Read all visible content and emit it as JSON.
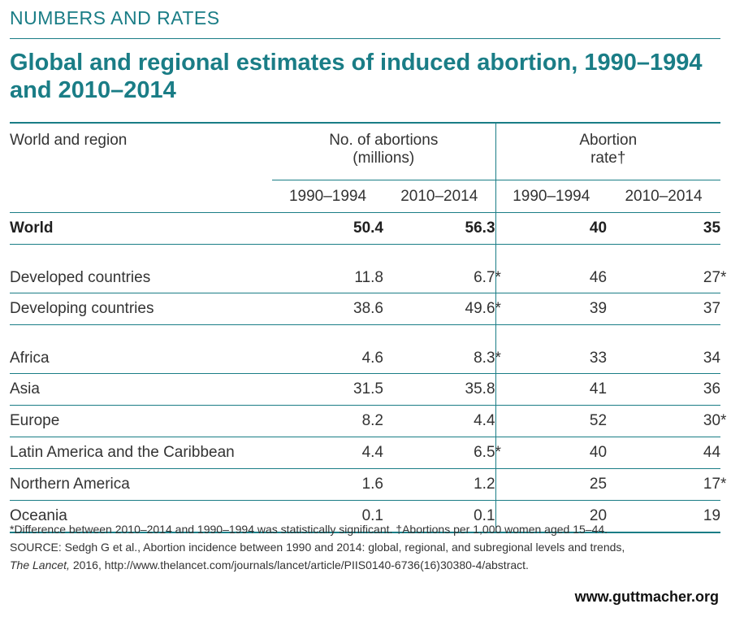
{
  "kicker": "NUMBERS AND RATES",
  "title": "Global and regional estimates of induced abortion, 1990–1994 and 2010–2014",
  "chart_data": {
    "type": "table",
    "columns": {
      "region_header": "World and region",
      "group1": "No. of abortions (millions)",
      "group1_line1": "No. of abortions",
      "group1_line2": "(millions)",
      "group2": "Abortion rate†",
      "group2_line1": "Abortion",
      "group2_line2": "rate†",
      "periods": [
        "1990–1994",
        "2010–2014",
        "1990–1994",
        "2010–2014"
      ]
    },
    "rows": [
      {
        "region": "World",
        "abortions_1990_1994": "50.4",
        "abortions_2010_2014": "56.3",
        "rate_1990_1994": "40",
        "rate_2010_2014": "35"
      },
      {
        "region": "Developed countries",
        "abortions_1990_1994": "11.8",
        "abortions_2010_2014": "6.7*",
        "rate_1990_1994": "46",
        "rate_2010_2014": "27*"
      },
      {
        "region": "Developing countries",
        "abortions_1990_1994": "38.6",
        "abortions_2010_2014": "49.6*",
        "rate_1990_1994": "39",
        "rate_2010_2014": "37"
      },
      {
        "region": "Africa",
        "abortions_1990_1994": "4.6",
        "abortions_2010_2014": "8.3*",
        "rate_1990_1994": "33",
        "rate_2010_2014": "34"
      },
      {
        "region": "Asia",
        "abortions_1990_1994": "31.5",
        "abortions_2010_2014": "35.8",
        "rate_1990_1994": "41",
        "rate_2010_2014": "36"
      },
      {
        "region": "Europe",
        "abortions_1990_1994": "8.2",
        "abortions_2010_2014": "4.4",
        "rate_1990_1994": "52",
        "rate_2010_2014": "30*"
      },
      {
        "region": "Latin America and the Caribbean",
        "abortions_1990_1994": "4.4",
        "abortions_2010_2014": "6.5*",
        "rate_1990_1994": "40",
        "rate_2010_2014": "44"
      },
      {
        "region": "Northern America",
        "abortions_1990_1994": "1.6",
        "abortions_2010_2014": "1.2",
        "rate_1990_1994": "25",
        "rate_2010_2014": "17*"
      },
      {
        "region": "Oceania",
        "abortions_1990_1994": "0.1",
        "abortions_2010_2014": "0.1",
        "rate_1990_1994": "20",
        "rate_2010_2014": "19"
      }
    ]
  },
  "notes": {
    "footnote": "*Difference between 2010–2014 and 1990–1994 was statistically significant. †Abortions per 1,000 women aged 15–44.",
    "source_prefix": "SOURCE: Sedgh G et al., Abortion incidence between 1990 and 2014: global, regional, and subregional levels and trends,",
    "source_journal": "The Lancet,",
    "source_suffix": " 2016, http://www.thelancet.com/journals/lancet/article/PIIS0140-6736(16)30380-4/abstract."
  },
  "website": "www.guttmacher.org",
  "colors": {
    "accent": "#1a7d86",
    "text": "#333333"
  }
}
